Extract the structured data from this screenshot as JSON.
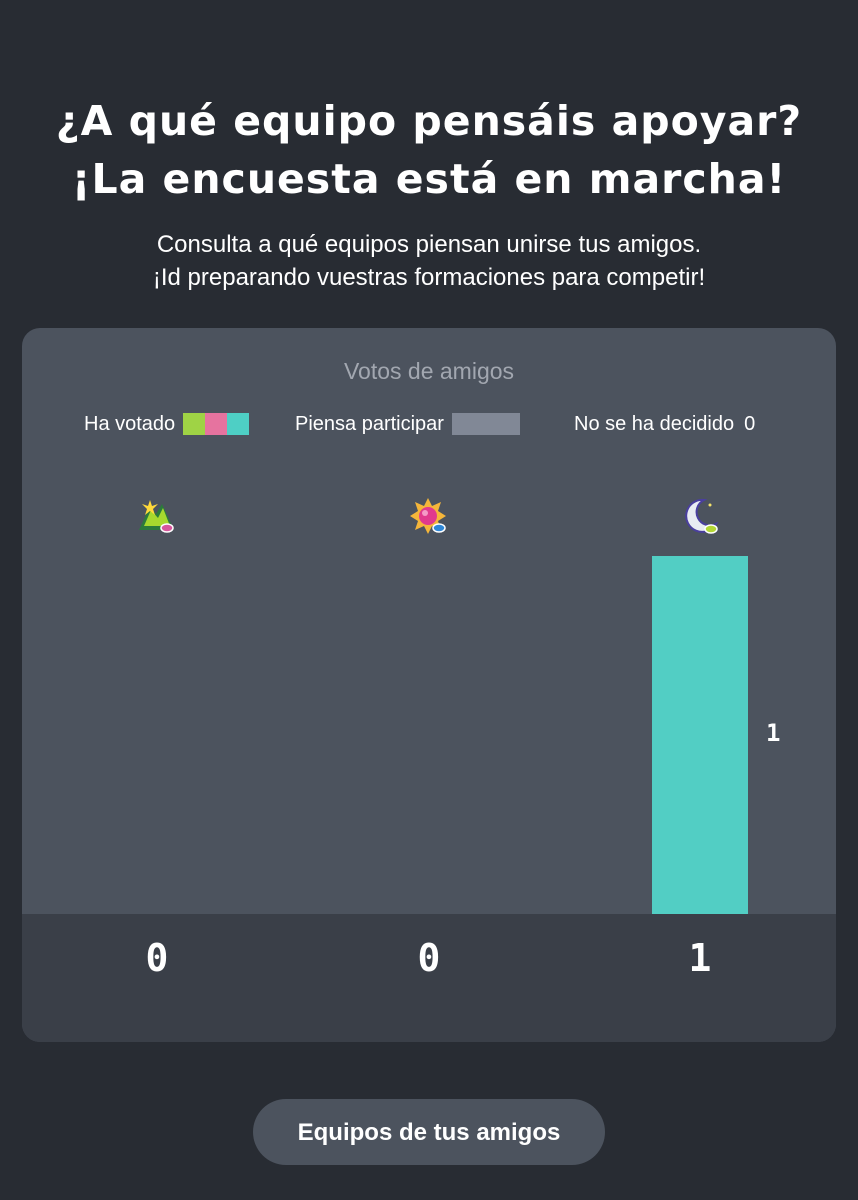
{
  "header": {
    "title_line1": "¿A qué equipo pensáis apoyar?",
    "title_line2": "¡La encuesta está en marcha!",
    "subtitle_line1": "Consulta a qué equipos piensan unirse tus amigos.",
    "subtitle_line2": "¡Id preparando vuestras formaciones para competir!"
  },
  "poll": {
    "title": "Votos de amigos",
    "legend": {
      "voted_label": "Ha votado",
      "voted_colors": [
        "#9fd345",
        "#e6739f",
        "#4ecfc5"
      ],
      "planning_label": "Piensa participar",
      "planning_color": "#818896",
      "undecided_label": "No se ha decidido",
      "undecided_count": "0"
    },
    "teams": [
      {
        "icon": "mountain-team-icon",
        "count": "0",
        "value": 0
      },
      {
        "icon": "sun-team-icon",
        "count": "0",
        "value": 0
      },
      {
        "icon": "moon-team-icon",
        "count": "1",
        "value": 1,
        "bar_label": "1"
      }
    ]
  },
  "chart_data": {
    "type": "bar",
    "categories": [
      "",
      "",
      ""
    ],
    "series": [
      {
        "values": [
          0,
          0,
          1
        ]
      }
    ],
    "title": "Votos de amigos",
    "ylim": [
      0,
      1
    ],
    "colors": [
      "#9fd345",
      "#e6739f",
      "#52cec4"
    ]
  },
  "actions": {
    "friends_teams_label": "Equipos de tus amigos"
  }
}
